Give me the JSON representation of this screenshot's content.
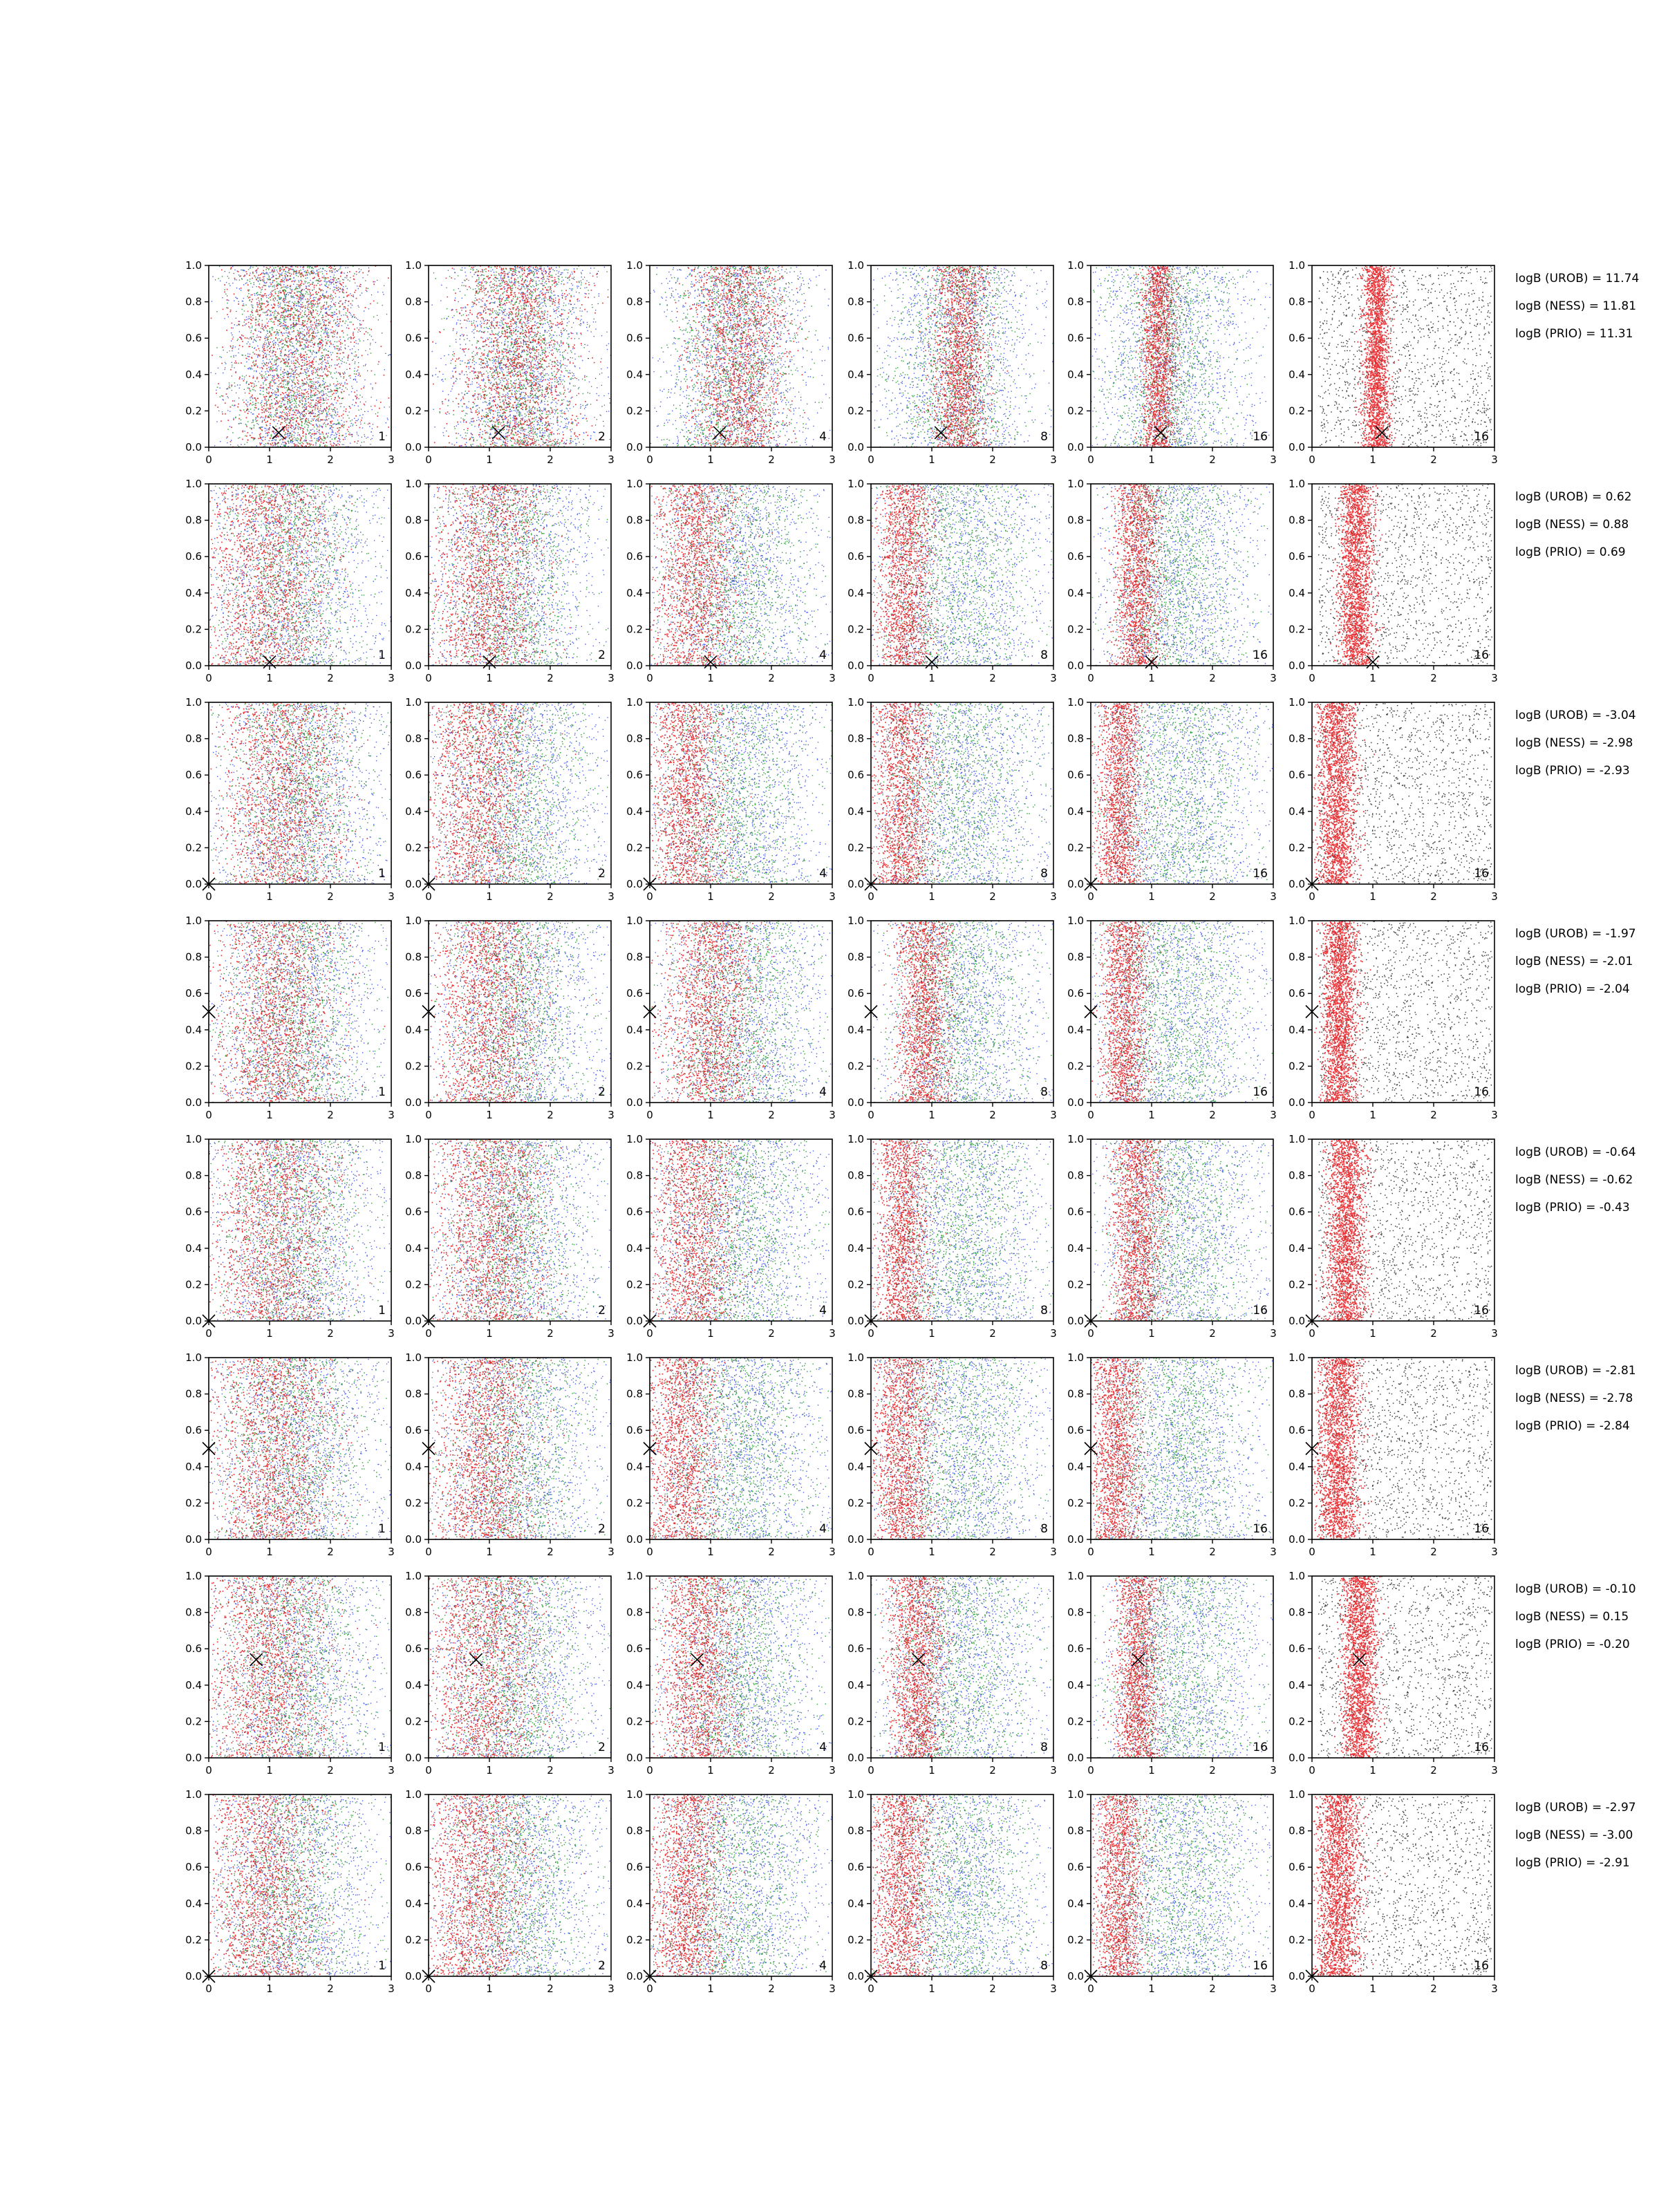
{
  "chart_data": {
    "type": "scatter",
    "layout": {
      "rows": 8,
      "cols": 6
    },
    "xlim": [
      0,
      3
    ],
    "ylim": [
      0,
      1.0
    ],
    "x_ticks": [
      "0",
      "1",
      "2",
      "3"
    ],
    "y_ticks": [
      "0.0",
      "0.2",
      "0.4",
      "0.6",
      "0.8",
      "1.0"
    ],
    "grid": false,
    "legend": "none",
    "panel_labels": [
      "1",
      "2",
      "4",
      "8",
      "16",
      "16"
    ],
    "colors": {
      "red": "#e8161b",
      "green": "#1f9a2a",
      "blue": "#3045e8",
      "black": "#222222",
      "axis": "#000000"
    },
    "rows_data": [
      {
        "bayes_factors": [
          "logB (UROB) = 11.74",
          "logB (NESS) = 11.81",
          "logB (PRIO) = 11.31"
        ],
        "marker": {
          "x": 1.15,
          "y": 0.08
        },
        "centers": [
          1.45,
          1.45,
          1.45,
          1.45,
          1.1,
          1.05
        ],
        "red_spread": [
          0.55,
          0.5,
          0.38,
          0.22,
          0.13,
          0.11
        ],
        "blue_center": [
          1.45,
          1.5,
          1.4,
          1.4,
          1.3,
          1.5
        ],
        "blue_spread": [
          0.6,
          0.6,
          0.62,
          0.65,
          0.7,
          0.0
        ]
      },
      {
        "bayes_factors": [
          "logB (UROB) = 0.62",
          "logB (NESS) = 0.88",
          "logB (PRIO) = 0.69"
        ],
        "marker": {
          "x": 1.0,
          "y": 0.02
        },
        "centers": [
          0.95,
          0.95,
          0.75,
          0.55,
          0.75,
          0.72
        ],
        "red_spread": [
          0.5,
          0.45,
          0.35,
          0.22,
          0.18,
          0.14
        ],
        "blue_center": [
          1.4,
          1.4,
          1.45,
          1.5,
          1.45,
          1.5
        ],
        "blue_spread": [
          0.75,
          0.7,
          0.75,
          0.75,
          0.7,
          0.0
        ]
      },
      {
        "bayes_factors": [
          "logB (UROB) = -3.04",
          "logB (NESS) = -2.98",
          "logB (PRIO) = -2.93"
        ],
        "marker": {
          "x": 0.0,
          "y": 0.0
        },
        "centers": [
          1.2,
          0.8,
          0.6,
          0.5,
          0.45,
          0.4
        ],
        "red_spread": [
          0.5,
          0.42,
          0.32,
          0.25,
          0.18,
          0.16
        ],
        "blue_center": [
          1.5,
          1.5,
          1.45,
          1.5,
          1.5,
          1.5
        ],
        "blue_spread": [
          0.75,
          0.72,
          0.75,
          0.72,
          0.72,
          0.0
        ]
      },
      {
        "bayes_factors": [
          "logB (UROB) = -1.97",
          "logB (NESS) = -2.01",
          "logB (PRIO) = -2.04"
        ],
        "marker": {
          "x": 0.0,
          "y": 0.5
        },
        "centers": [
          1.1,
          0.95,
          0.95,
          0.85,
          0.55,
          0.45
        ],
        "red_spread": [
          0.5,
          0.42,
          0.38,
          0.22,
          0.18,
          0.14
        ],
        "blue_center": [
          1.45,
          1.5,
          1.6,
          1.5,
          1.45,
          1.55
        ],
        "blue_spread": [
          0.72,
          0.7,
          0.7,
          0.72,
          0.72,
          0.0
        ]
      },
      {
        "bayes_factors": [
          "logB (UROB) = -0.64",
          "logB (NESS) = -0.62",
          "logB (PRIO) = -0.43"
        ],
        "marker": {
          "x": 0.0,
          "y": 0.0
        },
        "centers": [
          1.05,
          1.0,
          0.7,
          0.5,
          0.75,
          0.55
        ],
        "red_spread": [
          0.5,
          0.45,
          0.35,
          0.22,
          0.2,
          0.16
        ],
        "blue_center": [
          1.45,
          1.45,
          1.5,
          1.55,
          1.5,
          1.5
        ],
        "blue_spread": [
          0.72,
          0.72,
          0.72,
          0.72,
          0.72,
          0.0
        ]
      },
      {
        "bayes_factors": [
          "logB (UROB) = -2.81",
          "logB (NESS) = -2.78",
          "logB (PRIO) = -2.84"
        ],
        "marker": {
          "x": 0.0,
          "y": 0.5
        },
        "centers": [
          1.05,
          0.9,
          0.5,
          0.5,
          0.4,
          0.42
        ],
        "red_spread": [
          0.5,
          0.42,
          0.3,
          0.25,
          0.2,
          0.18
        ],
        "blue_center": [
          1.45,
          1.5,
          1.55,
          1.5,
          1.5,
          1.5
        ],
        "blue_spread": [
          0.72,
          0.72,
          0.72,
          0.72,
          0.72,
          0.0
        ]
      },
      {
        "bayes_factors": [
          "logB (UROB) = -0.10",
          "logB (NESS) = 0.15",
          "logB (PRIO) = -0.20"
        ],
        "marker": {
          "x": 0.78,
          "y": 0.54
        },
        "centers": [
          0.95,
          0.9,
          0.8,
          0.75,
          0.75,
          0.78
        ],
        "red_spread": [
          0.5,
          0.45,
          0.33,
          0.22,
          0.18,
          0.14
        ],
        "blue_center": [
          1.45,
          1.45,
          1.5,
          1.5,
          1.5,
          1.5
        ],
        "blue_spread": [
          0.75,
          0.72,
          0.72,
          0.72,
          0.72,
          0.0
        ]
      },
      {
        "bayes_factors": [
          "logB (UROB) = -2.97",
          "logB (NESS) = -3.00",
          "logB (PRIO) = -2.91"
        ],
        "marker": {
          "x": 0.0,
          "y": 0.0
        },
        "centers": [
          0.85,
          0.75,
          0.6,
          0.5,
          0.45,
          0.42
        ],
        "red_spread": [
          0.48,
          0.42,
          0.3,
          0.25,
          0.2,
          0.18
        ],
        "blue_center": [
          1.45,
          1.5,
          1.5,
          1.5,
          1.5,
          1.5
        ],
        "blue_spread": [
          0.75,
          0.72,
          0.72,
          0.72,
          0.72,
          0.0
        ]
      }
    ]
  }
}
